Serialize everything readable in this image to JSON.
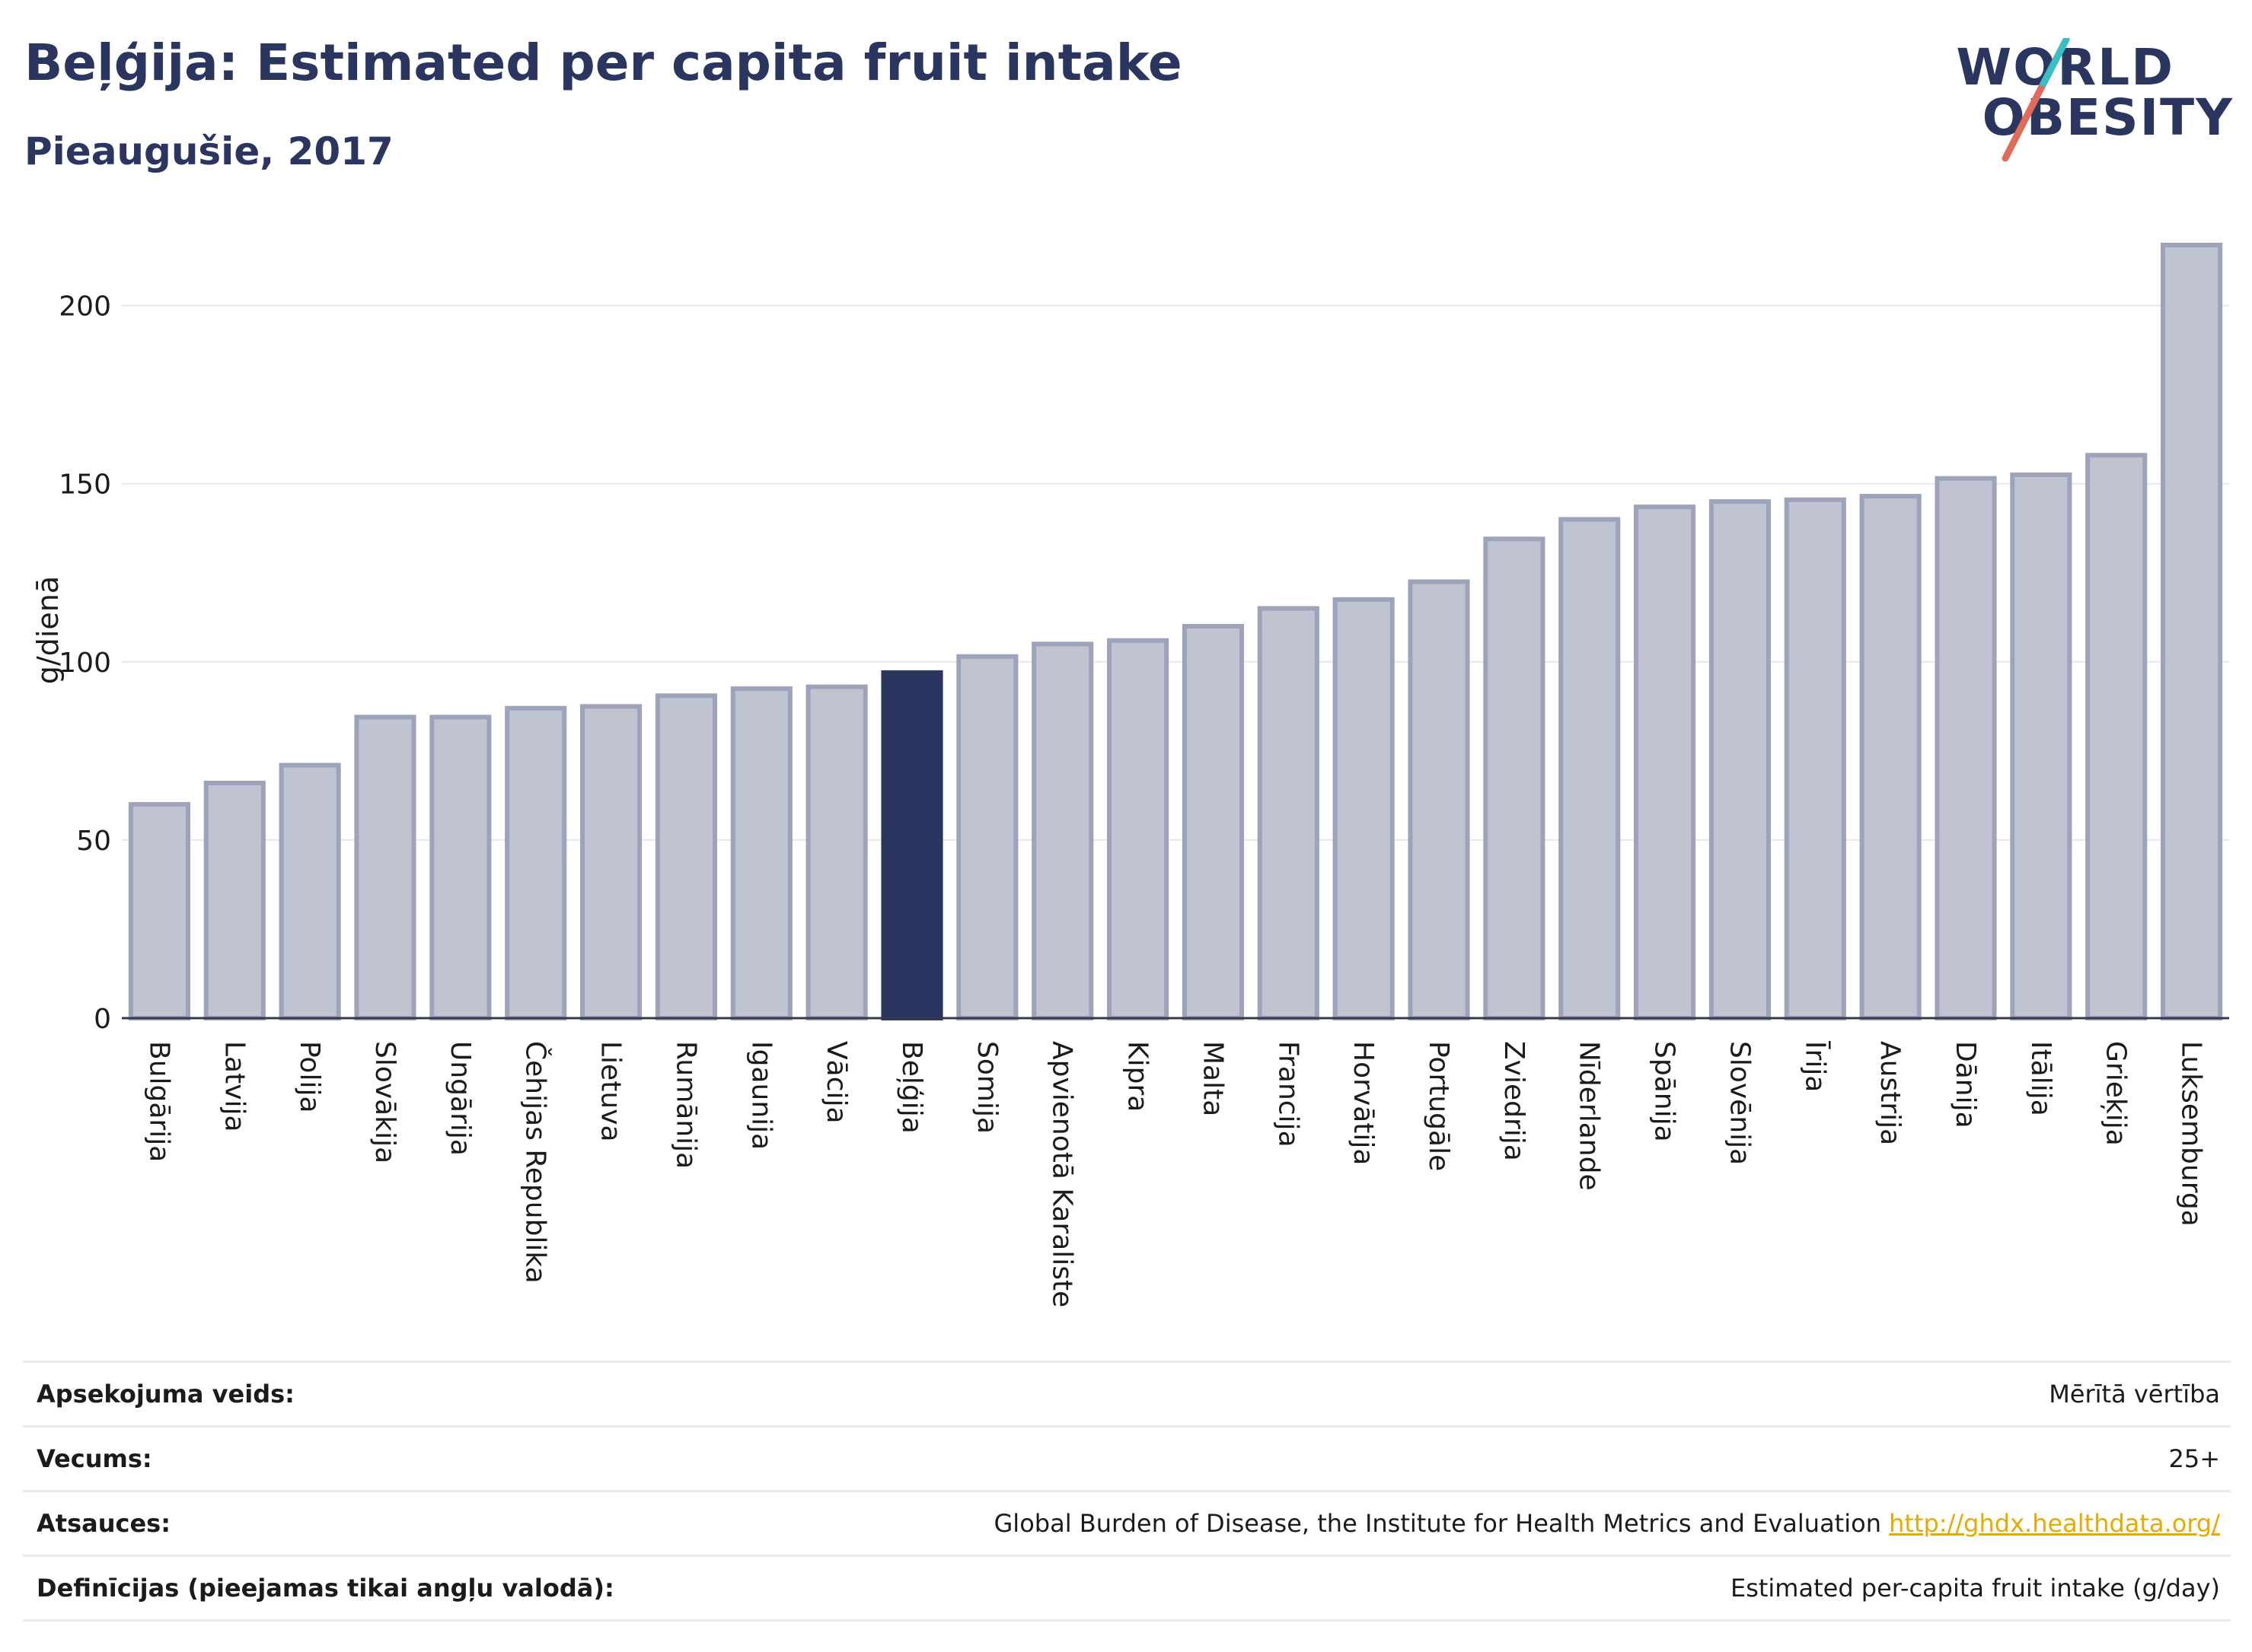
{
  "header": {
    "title": "Beļģija: Estimated per capita fruit intake",
    "subtitle": "Pieaugušie, 2017"
  },
  "logo": {
    "line1": "WORLD",
    "line2": "OBESITY",
    "accent_colors": [
      "#e06b5b",
      "#3bbdc1"
    ]
  },
  "chart_data": {
    "type": "bar",
    "ylabel": "g/dienā",
    "xlabel": "",
    "ylim": [
      0,
      217
    ],
    "yticks": [
      0,
      50,
      100,
      150,
      200
    ],
    "grid": true,
    "highlight": "Beļģija",
    "colors": {
      "bar": "#c0c4d1",
      "bar_stroke": "#9da3ba",
      "highlight": "#2a3560"
    },
    "categories": [
      "Bulgārija",
      "Latvija",
      "Polija",
      "Slovākija",
      "Ungārija",
      "Čehijas Republika",
      "Lietuva",
      "Rumānija",
      "Igaunija",
      "Vācija",
      "Beļģija",
      "Somija",
      "Apvienotā Karaliste",
      "Kipra",
      "Malta",
      "Francija",
      "Horvātija",
      "Portugāle",
      "Zviedrija",
      "Nīderlande",
      "Spānija",
      "Slovēnija",
      "Īrija",
      "Austrija",
      "Dānija",
      "Itālija",
      "Grieķija",
      "Luksemburga"
    ],
    "values": [
      60,
      66,
      71,
      84.5,
      84.5,
      87,
      87.5,
      90.5,
      92.5,
      93,
      97,
      101.5,
      105,
      106,
      110,
      115,
      117.5,
      122.5,
      134.5,
      140,
      143.5,
      145,
      145.5,
      146.5,
      151.5,
      152.5,
      158,
      217
    ]
  },
  "meta": [
    {
      "label": "Apsekojuma veids:",
      "value": "Mērītā vērtība"
    },
    {
      "label": "Vecums:",
      "value": "25+"
    },
    {
      "label": "Atsauces:",
      "value": "Global Burden of Disease, the Institute for Health Metrics and Evaluation",
      "link": "http://ghdx.healthdata.org/"
    },
    {
      "label": "Definīcijas (pieejamas tikai angļu valodā):",
      "value": "Estimated per-capita fruit intake (g/day)"
    }
  ]
}
